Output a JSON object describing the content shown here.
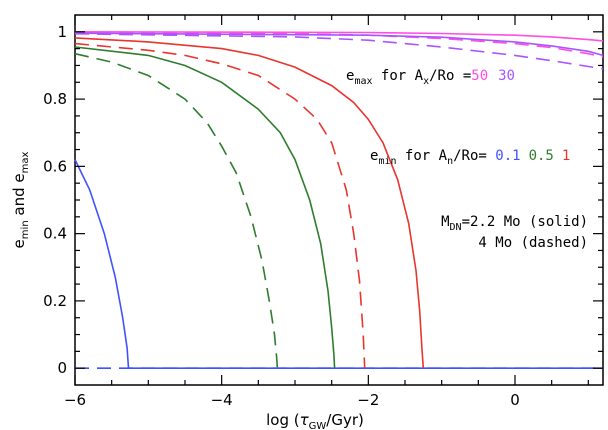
{
  "chart_data": {
    "type": "line",
    "xlim": [
      -6,
      1.2
    ],
    "ylim": [
      -0.05,
      1.05
    ],
    "x_ticks": [
      -6,
      -4,
      -2,
      0
    ],
    "x_tick_labels": [
      "−6",
      "−4",
      "−2",
      "0"
    ],
    "y_ticks": [
      0,
      0.2,
      0.4,
      0.6,
      0.8,
      1
    ],
    "y_tick_labels": [
      "0",
      "0.2",
      "0.4",
      "0.6",
      "0.8",
      "1"
    ],
    "xlabel": {
      "pre": "log (",
      "tau": "τ",
      "sub": "GW",
      "post": "/Gyr)"
    },
    "ylabel": {
      "e1": "e",
      "s1": "min",
      "mid": " and ",
      "e2": "e",
      "s2": "max"
    },
    "grid": false,
    "series": [
      {
        "color": "#3f52ff",
        "style": "solid",
        "x": [
          -6,
          -5.8,
          -5.6,
          -5.45,
          -5.35,
          -5.29,
          -5.27,
          -5.27,
          1.2
        ],
        "y": [
          0.62,
          0.53,
          0.4,
          0.27,
          0.15,
          0.06,
          0.0,
          0.0,
          0.0
        ]
      },
      {
        "color": "#3f52ff",
        "style": "dashed",
        "x": [
          -6,
          1.2
        ],
        "y": [
          0,
          0
        ]
      },
      {
        "color": "#2e7d2e",
        "style": "solid",
        "x": [
          -6,
          -5,
          -4.5,
          -4,
          -3.5,
          -3.2,
          -3,
          -2.8,
          -2.65,
          -2.55,
          -2.5,
          -2.47,
          -2.46
        ],
        "y": [
          0.955,
          0.93,
          0.9,
          0.85,
          0.77,
          0.7,
          0.62,
          0.5,
          0.37,
          0.23,
          0.12,
          0.04,
          0.0
        ]
      },
      {
        "color": "#2e7d2e",
        "style": "dashed",
        "x": [
          -6,
          -5.5,
          -5,
          -4.5,
          -4.2,
          -4,
          -3.8,
          -3.6,
          -3.45,
          -3.35,
          -3.28,
          -3.25,
          -3.24
        ],
        "y": [
          0.935,
          0.91,
          0.87,
          0.8,
          0.73,
          0.66,
          0.58,
          0.45,
          0.32,
          0.2,
          0.1,
          0.03,
          0.0
        ]
      },
      {
        "color": "#e8352e",
        "style": "solid",
        "x": [
          -6,
          -5,
          -4,
          -3.5,
          -3,
          -2.5,
          -2.2,
          -2,
          -1.8,
          -1.6,
          -1.45,
          -1.35,
          -1.3,
          -1.27,
          -1.25
        ],
        "y": [
          0.982,
          0.97,
          0.95,
          0.93,
          0.895,
          0.84,
          0.79,
          0.74,
          0.67,
          0.56,
          0.43,
          0.29,
          0.17,
          0.06,
          0.0
        ]
      },
      {
        "color": "#e8352e",
        "style": "dashed",
        "x": [
          -6,
          -5,
          -4.5,
          -4,
          -3.5,
          -3,
          -2.7,
          -2.5,
          -2.3,
          -2.2,
          -2.12,
          -2.07,
          -2.05
        ],
        "y": [
          0.965,
          0.945,
          0.93,
          0.905,
          0.87,
          0.8,
          0.74,
          0.67,
          0.53,
          0.4,
          0.26,
          0.1,
          0.0
        ]
      },
      {
        "color": "#ff4de6",
        "style": "solid",
        "x": [
          -6,
          -2,
          -1,
          0,
          0.5,
          1,
          1.2
        ],
        "y": [
          1.0,
          0.998,
          0.995,
          0.99,
          0.985,
          0.977,
          0.973
        ]
      },
      {
        "color": "#ff4de6",
        "style": "dashed",
        "x": [
          -6,
          -3,
          -2,
          -1,
          0,
          0.5,
          1,
          1.2
        ],
        "y": [
          0.998,
          0.995,
          0.99,
          0.98,
          0.965,
          0.953,
          0.935,
          0.925
        ]
      },
      {
        "color": "#a955ff",
        "style": "solid",
        "x": [
          -6,
          -2,
          -1,
          0,
          0.5,
          1,
          1.2
        ],
        "y": [
          0.996,
          0.99,
          0.984,
          0.97,
          0.958,
          0.942,
          0.93
        ]
      },
      {
        "color": "#a955ff",
        "style": "dashed",
        "x": [
          -6,
          -3,
          -2,
          -1,
          0,
          0.5,
          1,
          1.2
        ],
        "y": [
          0.994,
          0.985,
          0.975,
          0.955,
          0.93,
          0.914,
          0.897,
          0.89
        ]
      }
    ],
    "annotations": {
      "emax": {
        "e": "e",
        "sub": "max",
        "mid": " for A",
        "sub2": "x",
        "post": "/Ro =",
        "v1": "50",
        "v1_color": "#ff4de6",
        "v2": "30",
        "v2_color": "#a955ff"
      },
      "emin": {
        "e": "e",
        "sub": "min",
        "mid": " for A",
        "sub2": "n",
        "post": "/Ro= ",
        "v1": "0.1",
        "v1_color": "#3f52ff",
        "v2": "0.5",
        "v2_color": "#2e7d2e",
        "v3": "1",
        "v3_color": "#e8352e"
      },
      "mdn": {
        "pre": "M",
        "sub": "DN",
        "post": "=2.2 Mo (solid)"
      },
      "dashed_note": "4 Mo (dashed)"
    }
  }
}
